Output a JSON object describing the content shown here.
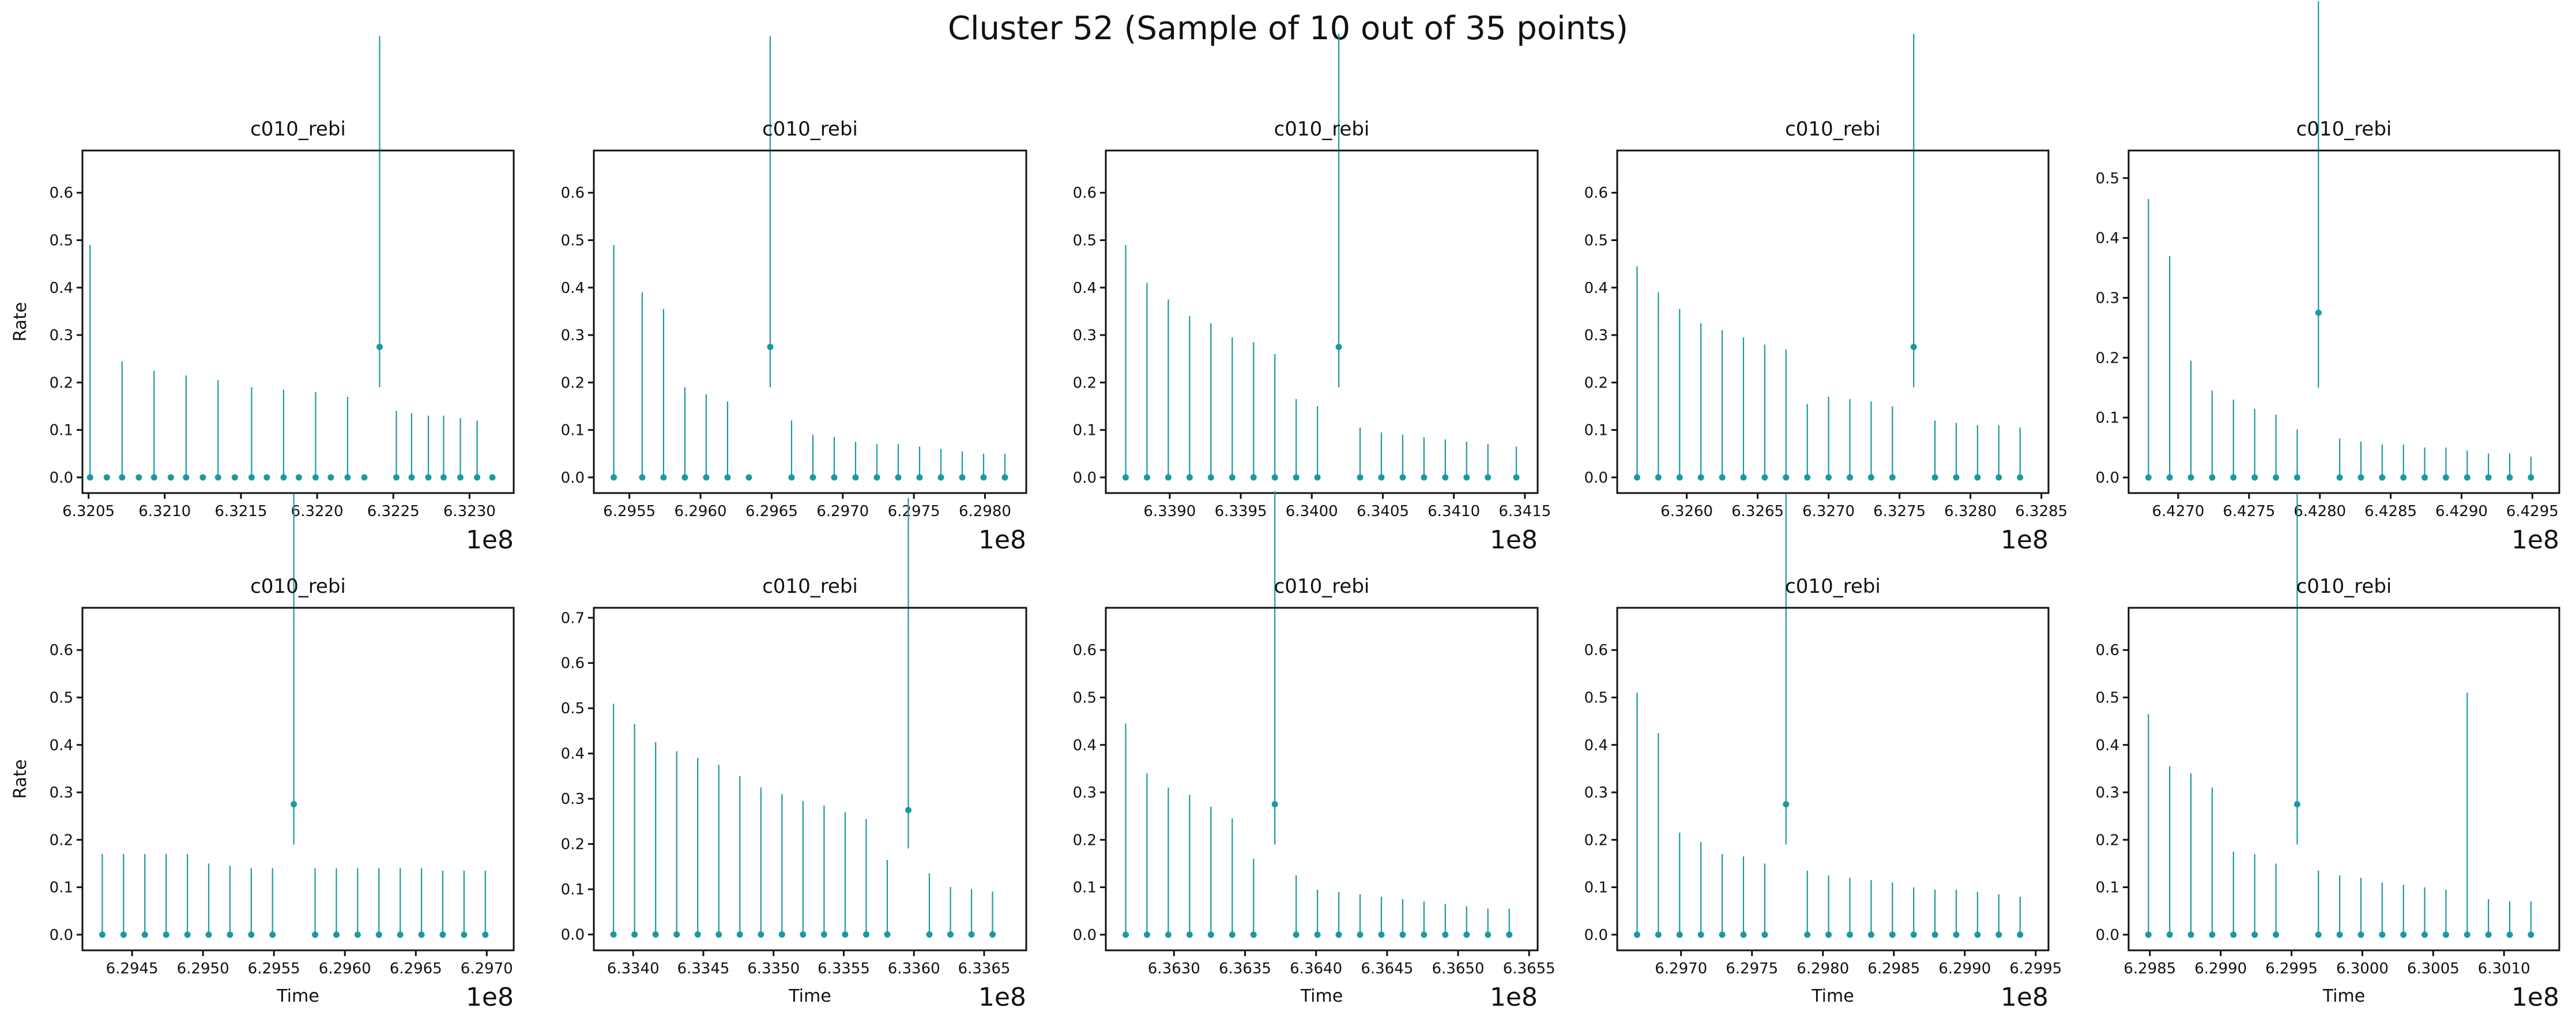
{
  "figure": {
    "suptitle": "Cluster 52 (Sample of 10 out of 35 points)",
    "series_color": "#1a9aa0"
  },
  "chart_data": [
    {
      "type": "scatter",
      "title": "c010_rebi",
      "xlabel": "",
      "ylabel": "Rate",
      "x_offset_label": "1e8",
      "xlim": [
        6.32046,
        6.32329
      ],
      "ylim": [
        -0.033,
        0.689
      ],
      "xticks": [
        6.3205,
        6.321,
        6.3215,
        6.322,
        6.3225,
        6.323
      ],
      "xtick_labels": [
        "6.3205",
        "6.3210",
        "6.3215",
        "6.3220",
        "6.3225",
        "6.3230"
      ],
      "yticks": [
        0.0,
        0.1,
        0.2,
        0.3,
        0.4,
        0.5,
        0.6
      ],
      "ytick_labels": [
        "0.0",
        "0.1",
        "0.2",
        "0.3",
        "0.4",
        "0.5",
        "0.6"
      ],
      "x": [
        6.32051,
        6.32062,
        6.32072,
        6.32083,
        6.32093,
        6.32104,
        6.32114,
        6.32125,
        6.32135,
        6.32146,
        6.32157,
        6.32167,
        6.32178,
        6.32188,
        6.32199,
        6.32209,
        6.3222,
        6.32231,
        6.32241,
        6.32252,
        6.32262,
        6.32273,
        6.32283,
        6.32294,
        6.32305,
        6.32315
      ],
      "y": [
        0,
        0,
        0,
        0,
        0,
        0,
        0,
        0,
        0,
        0,
        0,
        0,
        0,
        0,
        0,
        0,
        0,
        0,
        0.275,
        0,
        0,
        0,
        0,
        0,
        0,
        0
      ],
      "err_low": [
        0,
        0,
        0,
        0,
        0,
        0,
        0,
        0,
        0,
        0,
        0,
        0,
        0,
        0,
        0,
        0,
        0,
        0,
        0.085,
        0,
        0,
        0,
        0,
        0,
        0,
        0
      ],
      "err_high": [
        0.49,
        0,
        0.245,
        0,
        0.225,
        0,
        0.215,
        0,
        0.205,
        0,
        0.19,
        0,
        0.185,
        0,
        0.18,
        0,
        0.17,
        0,
        0.655,
        0.14,
        0.135,
        0.13,
        0.13,
        0.125,
        0.12,
        0
      ]
    },
    {
      "type": "scatter",
      "title": "c010_rebi",
      "xlabel": "",
      "ylabel": "",
      "x_offset_label": "1e8",
      "xlim": [
        6.29525,
        6.29829
      ],
      "ylim": [
        -0.033,
        0.689
      ],
      "xticks": [
        6.2955,
        6.296,
        6.2965,
        6.297,
        6.2975,
        6.298
      ],
      "xtick_labels": [
        "6.2955",
        "6.2960",
        "6.2965",
        "6.2970",
        "6.2975",
        "6.2980"
      ],
      "yticks": [
        0.0,
        0.1,
        0.2,
        0.3,
        0.4,
        0.5,
        0.6
      ],
      "ytick_labels": [
        "0.0",
        "0.1",
        "0.2",
        "0.3",
        "0.4",
        "0.5",
        "0.6"
      ],
      "x": [
        6.29539,
        6.29559,
        6.29574,
        6.29589,
        6.29604,
        6.29619,
        6.29634,
        6.29649,
        6.29664,
        6.29679,
        6.29694,
        6.29709,
        6.29724,
        6.29739,
        6.29754,
        6.29769,
        6.29784,
        6.29799,
        6.29814
      ],
      "y": [
        0,
        0,
        0,
        0,
        0,
        0,
        0,
        0.275,
        0,
        0,
        0,
        0,
        0,
        0,
        0,
        0,
        0,
        0,
        0
      ],
      "err_low": [
        0,
        0,
        0,
        0,
        0,
        0,
        0,
        0.085,
        0,
        0,
        0,
        0,
        0,
        0,
        0,
        0,
        0,
        0,
        0
      ],
      "err_high": [
        0.49,
        0.39,
        0.355,
        0.19,
        0.175,
        0.16,
        0,
        0.655,
        0.12,
        0.09,
        0.085,
        0.075,
        0.07,
        0.07,
        0.065,
        0.06,
        0.055,
        0.05,
        0.05
      ]
    },
    {
      "type": "scatter",
      "title": "c010_rebi",
      "xlabel": "",
      "ylabel": "",
      "x_offset_label": "1e8",
      "xlim": [
        6.33855,
        6.34159
      ],
      "ylim": [
        -0.033,
        0.689
      ],
      "xticks": [
        6.339,
        6.3395,
        6.34,
        6.3405,
        6.341,
        6.3415
      ],
      "xtick_labels": [
        "6.3390",
        "6.3395",
        "6.3400",
        "6.3405",
        "6.3410",
        "6.3415"
      ],
      "yticks": [
        0.0,
        0.1,
        0.2,
        0.3,
        0.4,
        0.5,
        0.6
      ],
      "ytick_labels": [
        "0.0",
        "0.1",
        "0.2",
        "0.3",
        "0.4",
        "0.5",
        "0.6"
      ],
      "x": [
        6.33869,
        6.33884,
        6.33899,
        6.33914,
        6.33929,
        6.33944,
        6.33959,
        6.33974,
        6.33989,
        6.34004,
        6.34019,
        6.34034,
        6.34049,
        6.34064,
        6.34079,
        6.34094,
        6.34109,
        6.34124,
        6.34144
      ],
      "y": [
        0,
        0,
        0,
        0,
        0,
        0,
        0,
        0,
        0,
        0,
        0.275,
        0,
        0,
        0,
        0,
        0,
        0,
        0,
        0
      ],
      "err_low": [
        0,
        0,
        0,
        0,
        0,
        0,
        0,
        0,
        0,
        0,
        0.085,
        0,
        0,
        0,
        0,
        0,
        0,
        0,
        0
      ],
      "err_high": [
        0.49,
        0.41,
        0.375,
        0.34,
        0.325,
        0.295,
        0.285,
        0.26,
        0.165,
        0.15,
        0.66,
        0.105,
        0.095,
        0.09,
        0.085,
        0.08,
        0.075,
        0.07,
        0.065
      ]
    },
    {
      "type": "scatter",
      "title": "c010_rebi",
      "xlabel": "",
      "ylabel": "",
      "x_offset_label": "1e8",
      "xlim": [
        6.32551,
        6.32855
      ],
      "ylim": [
        -0.033,
        0.689
      ],
      "xticks": [
        6.326,
        6.3265,
        6.327,
        6.3275,
        6.328,
        6.3285
      ],
      "xtick_labels": [
        "6.3260",
        "6.3265",
        "6.3270",
        "6.3275",
        "6.3280",
        "6.3285"
      ],
      "yticks": [
        0.0,
        0.1,
        0.2,
        0.3,
        0.4,
        0.5,
        0.6
      ],
      "ytick_labels": [
        "0.0",
        "0.1",
        "0.2",
        "0.3",
        "0.4",
        "0.5",
        "0.6"
      ],
      "x": [
        6.32565,
        6.3258,
        6.32595,
        6.3261,
        6.32625,
        6.3264,
        6.32655,
        6.3267,
        6.32685,
        6.327,
        6.32715,
        6.3273,
        6.32745,
        6.3276,
        6.32775,
        6.3279,
        6.32805,
        6.3282,
        6.32835
      ],
      "y": [
        0,
        0,
        0,
        0,
        0,
        0,
        0,
        0,
        0,
        0,
        0,
        0,
        0,
        0.275,
        0,
        0,
        0,
        0,
        0
      ],
      "err_low": [
        0,
        0,
        0,
        0,
        0,
        0,
        0,
        0,
        0,
        0,
        0,
        0,
        0,
        0.085,
        0,
        0,
        0,
        0,
        0
      ],
      "err_high": [
        0.445,
        0.39,
        0.355,
        0.325,
        0.31,
        0.295,
        0.28,
        0.27,
        0.155,
        0.17,
        0.165,
        0.16,
        0.15,
        0.66,
        0.12,
        0.115,
        0.11,
        0.11,
        0.105
      ]
    },
    {
      "type": "scatter",
      "title": "c010_rebi",
      "xlabel": "",
      "ylabel": "",
      "x_offset_label": "1e8",
      "xlim": [
        6.42665,
        6.42969
      ],
      "ylim": [
        -0.026,
        0.546
      ],
      "xticks": [
        6.427,
        6.4275,
        6.428,
        6.4285,
        6.429,
        6.4295
      ],
      "xtick_labels": [
        "6.4270",
        "6.4275",
        "6.4280",
        "6.4285",
        "6.4290",
        "6.4295"
      ],
      "yticks": [
        0.0,
        0.1,
        0.2,
        0.3,
        0.4,
        0.5
      ],
      "ytick_labels": [
        "0.0",
        "0.1",
        "0.2",
        "0.3",
        "0.4",
        "0.5"
      ],
      "x": [
        6.42679,
        6.42694,
        6.42709,
        6.42724,
        6.42739,
        6.42754,
        6.42769,
        6.42784,
        6.42799,
        6.42814,
        6.42829,
        6.42844,
        6.42859,
        6.42874,
        6.42889,
        6.42904,
        6.42919,
        6.42934,
        6.42949
      ],
      "y": [
        0,
        0,
        0,
        0,
        0,
        0,
        0,
        0,
        0.275,
        0,
        0,
        0,
        0,
        0,
        0,
        0,
        0,
        0,
        0
      ],
      "err_low": [
        0,
        0,
        0,
        0,
        0,
        0,
        0,
        0,
        0.125,
        0,
        0,
        0,
        0,
        0,
        0,
        0,
        0,
        0,
        0
      ],
      "err_high": [
        0.465,
        0.37,
        0.195,
        0.145,
        0.13,
        0.115,
        0.105,
        0.08,
        0.52,
        0.065,
        0.06,
        0.055,
        0.055,
        0.05,
        0.05,
        0.045,
        0.04,
        0.04,
        0.035
      ]
    },
    {
      "type": "scatter",
      "title": "c010_rebi",
      "xlabel": "Time",
      "ylabel": "Rate",
      "x_offset_label": "1e8",
      "xlim": [
        6.29415,
        6.29719
      ],
      "ylim": [
        -0.033,
        0.689
      ],
      "xticks": [
        6.2945,
        6.295,
        6.2955,
        6.296,
        6.2965,
        6.297
      ],
      "xtick_labels": [
        "6.2945",
        "6.2950",
        "6.2955",
        "6.2960",
        "6.2965",
        "6.2970"
      ],
      "yticks": [
        0.0,
        0.1,
        0.2,
        0.3,
        0.4,
        0.5,
        0.6
      ],
      "ytick_labels": [
        "0.0",
        "0.1",
        "0.2",
        "0.3",
        "0.4",
        "0.5",
        "0.6"
      ],
      "x": [
        6.29429,
        6.29444,
        6.29459,
        6.29474,
        6.29489,
        6.29504,
        6.29519,
        6.29534,
        6.29549,
        6.29564,
        6.29579,
        6.29594,
        6.29609,
        6.29624,
        6.29639,
        6.29654,
        6.29669,
        6.29684,
        6.29699
      ],
      "y": [
        0,
        0,
        0,
        0,
        0,
        0,
        0,
        0,
        0,
        0.275,
        0,
        0,
        0,
        0,
        0,
        0,
        0,
        0,
        0
      ],
      "err_low": [
        0,
        0,
        0,
        0,
        0,
        0,
        0,
        0,
        0,
        0.085,
        0,
        0,
        0,
        0,
        0,
        0,
        0,
        0,
        0
      ],
      "err_high": [
        0.17,
        0.17,
        0.17,
        0.17,
        0.17,
        0.15,
        0.145,
        0.14,
        0.14,
        0.655,
        0.14,
        0.14,
        0.14,
        0.14,
        0.14,
        0.14,
        0.135,
        0.135,
        0.135
      ]
    },
    {
      "type": "scatter",
      "title": "c010_rebi",
      "xlabel": "Time",
      "ylabel": "",
      "x_offset_label": "1e8",
      "xlim": [
        6.33372,
        6.3368
      ],
      "ylim": [
        -0.035,
        0.722
      ],
      "xticks": [
        6.334,
        6.3345,
        6.335,
        6.3355,
        6.336,
        6.3365
      ],
      "xtick_labels": [
        "6.3340",
        "6.3345",
        "6.3350",
        "6.3355",
        "6.3360",
        "6.3365"
      ],
      "yticks": [
        0.0,
        0.1,
        0.2,
        0.3,
        0.4,
        0.5,
        0.6,
        0.7
      ],
      "ytick_labels": [
        "0.0",
        "0.1",
        "0.2",
        "0.3",
        "0.4",
        "0.5",
        "0.6",
        "0.7"
      ],
      "x": [
        6.33386,
        6.33401,
        6.33416,
        6.33431,
        6.33446,
        6.33461,
        6.33476,
        6.33491,
        6.33506,
        6.33521,
        6.33536,
        6.33551,
        6.33566,
        6.33581,
        6.33596,
        6.33611,
        6.33626,
        6.33641,
        6.33656
      ],
      "y": [
        0,
        0,
        0,
        0,
        0,
        0,
        0,
        0,
        0,
        0,
        0,
        0,
        0,
        0,
        0.275,
        0,
        0,
        0,
        0
      ],
      "err_low": [
        0,
        0,
        0,
        0,
        0,
        0,
        0,
        0,
        0,
        0,
        0,
        0,
        0,
        0,
        0.085,
        0,
        0,
        0,
        0
      ],
      "err_high": [
        0.51,
        0.465,
        0.425,
        0.405,
        0.39,
        0.375,
        0.35,
        0.325,
        0.31,
        0.295,
        0.285,
        0.27,
        0.255,
        0.165,
        0.69,
        0.135,
        0.105,
        0.1,
        0.095
      ]
    },
    {
      "type": "scatter",
      "title": "c010_rebi",
      "xlabel": "Time",
      "ylabel": "",
      "x_offset_label": "1e8",
      "xlim": [
        6.36252,
        6.36556
      ],
      "ylim": [
        -0.033,
        0.689
      ],
      "xticks": [
        6.363,
        6.3635,
        6.364,
        6.3645,
        6.365,
        6.3655
      ],
      "xtick_labels": [
        "6.3630",
        "6.3635",
        "6.3640",
        "6.3645",
        "6.3650",
        "6.3655"
      ],
      "yticks": [
        0.0,
        0.1,
        0.2,
        0.3,
        0.4,
        0.5,
        0.6
      ],
      "ytick_labels": [
        "0.0",
        "0.1",
        "0.2",
        "0.3",
        "0.4",
        "0.5",
        "0.6"
      ],
      "x": [
        6.36266,
        6.36281,
        6.36296,
        6.36311,
        6.36326,
        6.36341,
        6.36356,
        6.36371,
        6.36386,
        6.36401,
        6.36416,
        6.36431,
        6.36446,
        6.36461,
        6.36476,
        6.36491,
        6.36506,
        6.36521,
        6.36536
      ],
      "y": [
        0,
        0,
        0,
        0,
        0,
        0,
        0,
        0.275,
        0,
        0,
        0,
        0,
        0,
        0,
        0,
        0,
        0,
        0,
        0
      ],
      "err_low": [
        0,
        0,
        0,
        0,
        0,
        0,
        0,
        0.085,
        0,
        0,
        0,
        0,
        0,
        0,
        0,
        0,
        0,
        0,
        0
      ],
      "err_high": [
        0.445,
        0.34,
        0.31,
        0.295,
        0.27,
        0.245,
        0.16,
        0.66,
        0.125,
        0.095,
        0.09,
        0.085,
        0.08,
        0.075,
        0.07,
        0.065,
        0.06,
        0.055,
        0.055
      ]
    },
    {
      "type": "scatter",
      "title": "c010_rebi",
      "xlabel": "Time",
      "ylabel": "",
      "x_offset_label": "1e8",
      "xlim": [
        6.29655,
        6.29959
      ],
      "ylim": [
        -0.033,
        0.689
      ],
      "xticks": [
        6.297,
        6.2975,
        6.298,
        6.2985,
        6.299,
        6.2995
      ],
      "xtick_labels": [
        "6.2970",
        "6.2975",
        "6.2980",
        "6.2985",
        "6.2990",
        "6.2995"
      ],
      "yticks": [
        0.0,
        0.1,
        0.2,
        0.3,
        0.4,
        0.5,
        0.6
      ],
      "ytick_labels": [
        "0.0",
        "0.1",
        "0.2",
        "0.3",
        "0.4",
        "0.5",
        "0.6"
      ],
      "x": [
        6.29669,
        6.29684,
        6.29699,
        6.29714,
        6.29729,
        6.29744,
        6.29759,
        6.29774,
        6.29789,
        6.29804,
        6.29819,
        6.29834,
        6.29849,
        6.29864,
        6.29879,
        6.29894,
        6.29909,
        6.29924,
        6.29939
      ],
      "y": [
        0,
        0,
        0,
        0,
        0,
        0,
        0,
        0.275,
        0,
        0,
        0,
        0,
        0,
        0,
        0,
        0,
        0,
        0,
        0
      ],
      "err_low": [
        0,
        0,
        0,
        0,
        0,
        0,
        0,
        0.085,
        0,
        0,
        0,
        0,
        0,
        0,
        0,
        0,
        0,
        0,
        0
      ],
      "err_high": [
        0.51,
        0.425,
        0.215,
        0.195,
        0.17,
        0.165,
        0.15,
        0.655,
        0.135,
        0.125,
        0.12,
        0.115,
        0.11,
        0.1,
        0.095,
        0.095,
        0.09,
        0.085,
        0.08
      ]
    },
    {
      "type": "scatter",
      "title": "c010_rebi",
      "xlabel": "Time",
      "ylabel": "",
      "x_offset_label": "1e8",
      "xlim": [
        6.29835,
        6.30139
      ],
      "ylim": [
        -0.033,
        0.689
      ],
      "xticks": [
        6.2985,
        6.299,
        6.2995,
        6.3,
        6.3005,
        6.301
      ],
      "xtick_labels": [
        "6.2985",
        "6.2990",
        "6.2995",
        "6.3000",
        "6.3005",
        "6.3010"
      ],
      "yticks": [
        0.0,
        0.1,
        0.2,
        0.3,
        0.4,
        0.5,
        0.6
      ],
      "ytick_labels": [
        "0.0",
        "0.1",
        "0.2",
        "0.3",
        "0.4",
        "0.5",
        "0.6"
      ],
      "x": [
        6.29849,
        6.29864,
        6.29879,
        6.29894,
        6.29909,
        6.29924,
        6.29939,
        6.29954,
        6.29969,
        6.29984,
        6.29999,
        6.30014,
        6.30029,
        6.30044,
        6.30059,
        6.30074,
        6.30089,
        6.30104,
        6.30119
      ],
      "y": [
        0,
        0,
        0,
        0,
        0,
        0,
        0,
        0.275,
        0,
        0,
        0,
        0,
        0,
        0,
        0,
        0,
        0,
        0,
        0
      ],
      "err_low": [
        0,
        0,
        0,
        0,
        0,
        0,
        0,
        0.085,
        0,
        0,
        0,
        0,
        0,
        0,
        0,
        0,
        0,
        0,
        0
      ],
      "err_high": [
        0.465,
        0.355,
        0.34,
        0.31,
        0.175,
        0.17,
        0.15,
        0.655,
        0.135,
        0.125,
        0.12,
        0.11,
        0.105,
        0.1,
        0.095,
        0.51,
        0.075,
        0.07,
        0.07
      ]
    }
  ]
}
